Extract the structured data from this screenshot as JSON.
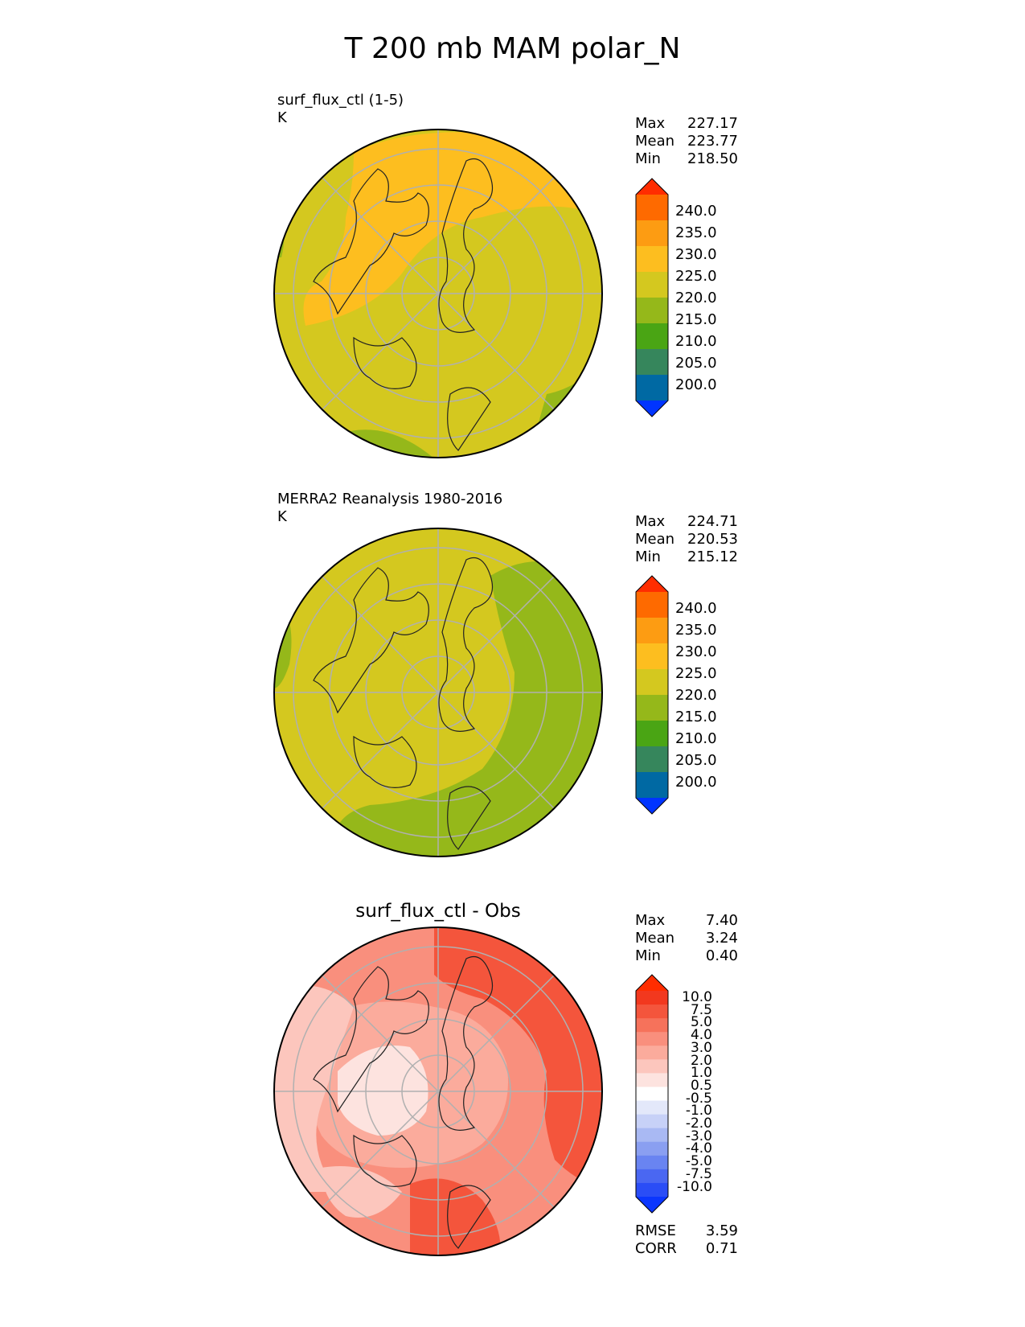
{
  "title": "T 200 mb MAM polar_N",
  "colors": {
    "levels_abs": [
      "#0034ff",
      "#0069a3",
      "#36865c",
      "#4aa514",
      "#95b81a",
      "#d4c81f",
      "#fdbe1f",
      "#fd9c12",
      "#fe6a00",
      "#ff2d00"
    ],
    "levels_diff": [
      "#0b36fe",
      "#2a4df6",
      "#4a67f2",
      "#6984f1",
      "#8a9ff1",
      "#a9b9f3",
      "#c7d1f7",
      "#e3e8fa",
      "#ffffff",
      "#fde3df",
      "#fcc6bd",
      "#fbab9c",
      "#f98f7d",
      "#f6725b",
      "#f4553c",
      "#f2381e",
      "#ff2d00"
    ],
    "map_outline": "#000000",
    "gridline": "#b0b0b0"
  },
  "panels": [
    {
      "name": "surf_flux_ctl (1-5)",
      "units": "K",
      "stats": [
        {
          "label": "Max",
          "value": "227.17"
        },
        {
          "label": "Mean",
          "value": "223.77"
        },
        {
          "label": "Min",
          "value": "218.50"
        }
      ],
      "colorbar_ticks": [
        "240.0",
        "235.0",
        "230.0",
        "225.0",
        "220.0",
        "215.0",
        "210.0",
        "205.0",
        "200.0"
      ]
    },
    {
      "name": "MERRA2 Reanalysis 1980-2016",
      "units": "K",
      "stats": [
        {
          "label": "Max",
          "value": "224.71"
        },
        {
          "label": "Mean",
          "value": "220.53"
        },
        {
          "label": "Min",
          "value": "215.12"
        }
      ],
      "colorbar_ticks": [
        "240.0",
        "235.0",
        "230.0",
        "225.0",
        "220.0",
        "215.0",
        "210.0",
        "205.0",
        "200.0"
      ]
    },
    {
      "name": "surf_flux_ctl - Obs",
      "stats": [
        {
          "label": "Max",
          "value": "7.40"
        },
        {
          "label": "Mean",
          "value": "3.24"
        },
        {
          "label": "Min",
          "value": "0.40"
        }
      ],
      "colorbar_ticks": [
        "10.0",
        "7.5",
        "5.0",
        "4.0",
        "3.0",
        "2.0",
        "1.0",
        "0.5",
        "-0.5",
        "-1.0",
        "-2.0",
        "-3.0",
        "-4.0",
        "-5.0",
        "-7.5",
        "-10.0"
      ],
      "metrics": [
        {
          "label": "RMSE",
          "value": "3.59"
        },
        {
          "label": "CORR",
          "value": "0.71"
        }
      ]
    }
  ]
}
